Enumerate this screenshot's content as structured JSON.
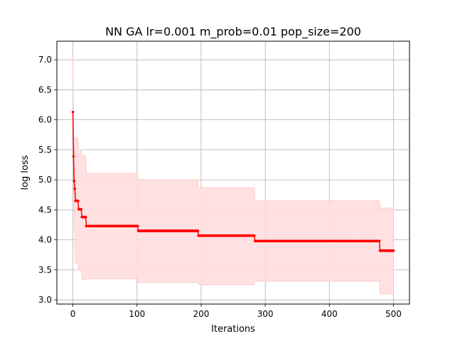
{
  "chart_data": {
    "type": "line",
    "title": "NN GA lr=0.001 m_prob=0.01 pop_size=200",
    "xlabel": "Iterations",
    "ylabel": "log loss",
    "xlim": [
      -25,
      525
    ],
    "ylim": [
      2.93,
      7.31
    ],
    "x_ticks": [
      0,
      100,
      200,
      300,
      400,
      500
    ],
    "x_tick_labels": [
      "0",
      "100",
      "200",
      "300",
      "400",
      "500"
    ],
    "y_ticks": [
      3.0,
      3.5,
      4.0,
      4.5,
      5.0,
      5.5,
      6.0,
      6.5,
      7.0
    ],
    "y_tick_labels": [
      "3.0",
      "3.5",
      "4.0",
      "4.5",
      "5.0",
      "5.5",
      "6.0",
      "6.5",
      "7.0"
    ],
    "grid": true,
    "series": [
      {
        "color": "#ff0000",
        "band_color": "#ffdede",
        "points": [
          [
            0,
            6.13
          ],
          [
            1,
            5.39
          ],
          [
            2,
            4.98
          ],
          [
            3,
            4.85
          ],
          [
            4,
            4.65
          ],
          [
            8,
            4.65
          ],
          [
            9,
            4.51
          ],
          [
            13,
            4.51
          ],
          [
            14,
            4.38
          ],
          [
            20,
            4.38
          ],
          [
            21,
            4.23
          ],
          [
            101,
            4.23
          ],
          [
            102,
            4.15
          ],
          [
            195,
            4.15
          ],
          [
            196,
            4.07
          ],
          [
            283,
            4.07
          ],
          [
            284,
            3.98
          ],
          [
            478,
            3.98
          ],
          [
            479,
            3.82
          ],
          [
            500,
            3.82
          ]
        ],
        "band": [
          [
            0,
            6.85,
            7.05
          ],
          [
            1,
            5.9,
            4.9
          ],
          [
            2,
            5.5,
            4.4
          ],
          [
            3,
            5.4,
            4.0
          ],
          [
            4,
            5.7,
            3.6
          ],
          [
            8,
            5.7,
            3.6
          ],
          [
            9,
            5.5,
            3.5
          ],
          [
            13,
            5.5,
            3.5
          ],
          [
            14,
            5.4,
            3.34
          ],
          [
            20,
            5.4,
            3.34
          ],
          [
            21,
            5.11,
            3.35
          ],
          [
            101,
            5.11,
            3.35
          ],
          [
            102,
            5.0,
            3.29
          ],
          [
            195,
            5.0,
            3.29
          ],
          [
            196,
            4.87,
            3.25
          ],
          [
            283,
            4.87,
            3.25
          ],
          [
            284,
            4.65,
            3.31
          ],
          [
            478,
            4.65,
            3.31
          ],
          [
            479,
            4.53,
            3.1
          ],
          [
            500,
            4.53,
            3.1
          ]
        ]
      }
    ]
  }
}
